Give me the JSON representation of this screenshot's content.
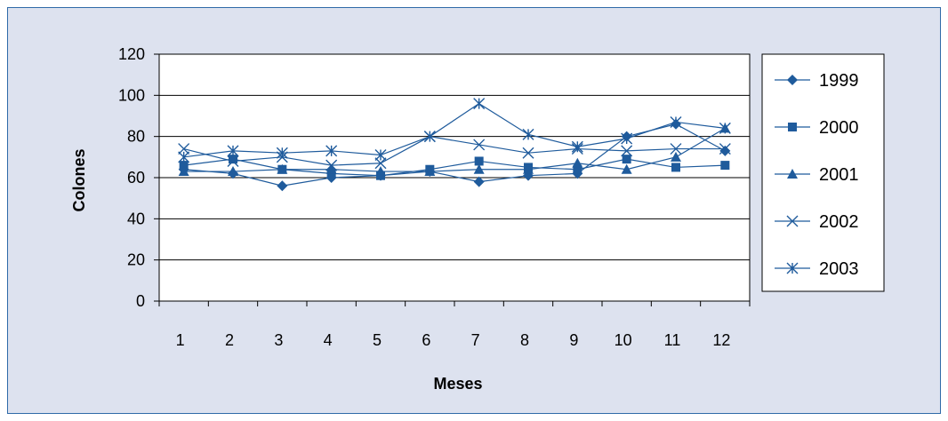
{
  "colors": {
    "series": "#1f5b9c",
    "background": "#dde2ef",
    "frame_border": "#2e6aa8",
    "plot_area": "#ffffff",
    "gridline": "#000000"
  },
  "chart_data": {
    "type": "line",
    "xlabel": "Meses",
    "ylabel": "Colones",
    "categories": [
      "1",
      "2",
      "3",
      "4",
      "5",
      "6",
      "7",
      "8",
      "9",
      "10",
      "11",
      "12"
    ],
    "ylim": [
      0,
      120
    ],
    "yticks": [
      "0",
      "20",
      "40",
      "60",
      "80",
      "100",
      "120"
    ],
    "grid": true,
    "legend_position": "right",
    "series": [
      {
        "name": "1999",
        "marker": "diamond",
        "values": [
          64,
          62,
          56,
          60,
          61,
          63,
          58,
          61,
          62,
          80,
          86,
          73
        ]
      },
      {
        "name": "2000",
        "marker": "square",
        "values": [
          66,
          69,
          64,
          62,
          61,
          64,
          68,
          65,
          64,
          69,
          65,
          66
        ]
      },
      {
        "name": "2001",
        "marker": "triangle",
        "values": [
          63,
          63,
          64,
          64,
          63,
          63,
          64,
          64,
          67,
          64,
          70,
          84
        ]
      },
      {
        "name": "2002",
        "marker": "x",
        "values": [
          74,
          68,
          70,
          66,
          67,
          80,
          76,
          72,
          74,
          73,
          74,
          74
        ]
      },
      {
        "name": "2003",
        "marker": "star",
        "values": [
          70,
          73,
          72,
          73,
          71,
          80,
          96,
          81,
          75,
          79,
          87,
          84
        ]
      }
    ]
  }
}
